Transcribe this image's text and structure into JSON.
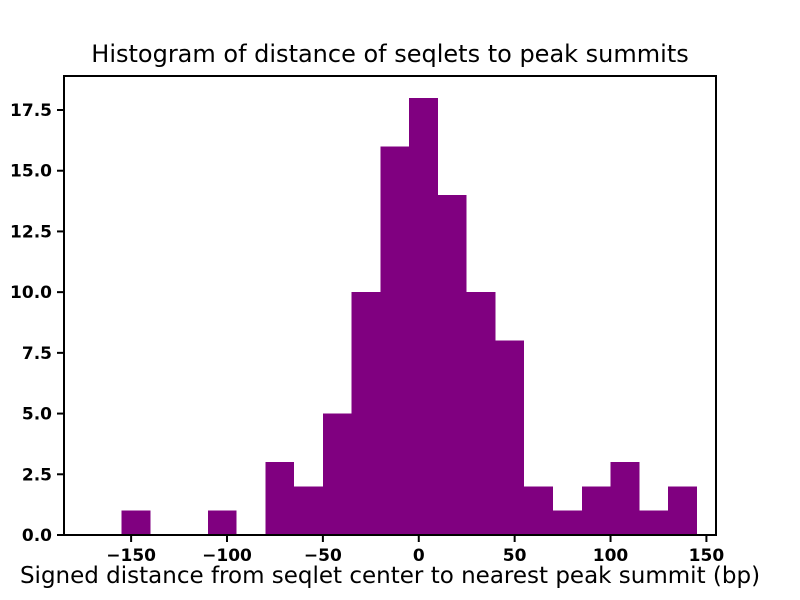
{
  "chart_data": {
    "type": "bar",
    "subtype": "histogram",
    "title": "Histogram of distance of seqlets to peak summits",
    "xlabel": "Signed distance from seqlet center to nearest peak summit (bp)",
    "ylabel": "",
    "bar_color": "#800080",
    "axis_color": "#000000",
    "bin_edges": [
      -155,
      -140,
      -125,
      -110,
      -95,
      -80,
      -65,
      -50,
      -35,
      -20,
      -5,
      10,
      25,
      40,
      55,
      70,
      85,
      100,
      115,
      130,
      145
    ],
    "counts": [
      1,
      0,
      0,
      1,
      0,
      3,
      2,
      5,
      10,
      16,
      18,
      14,
      10,
      8,
      2,
      1,
      2,
      3,
      1,
      2
    ],
    "xlim": [
      -185,
      155
    ],
    "ylim": [
      0,
      18.9
    ],
    "x_ticks": [
      -150,
      -100,
      -50,
      0,
      50,
      100,
      150
    ],
    "x_tick_labels": [
      "−150",
      "−100",
      "−50",
      "0",
      "50",
      "100",
      "150"
    ],
    "y_ticks": [
      0.0,
      2.5,
      5.0,
      7.5,
      10.0,
      12.5,
      15.0,
      17.5
    ],
    "y_tick_labels": [
      "0.0",
      "2.5",
      "5.0",
      "7.5",
      "10.0",
      "12.5",
      "15.0",
      "17.5"
    ],
    "grid": false,
    "legend": null
  }
}
